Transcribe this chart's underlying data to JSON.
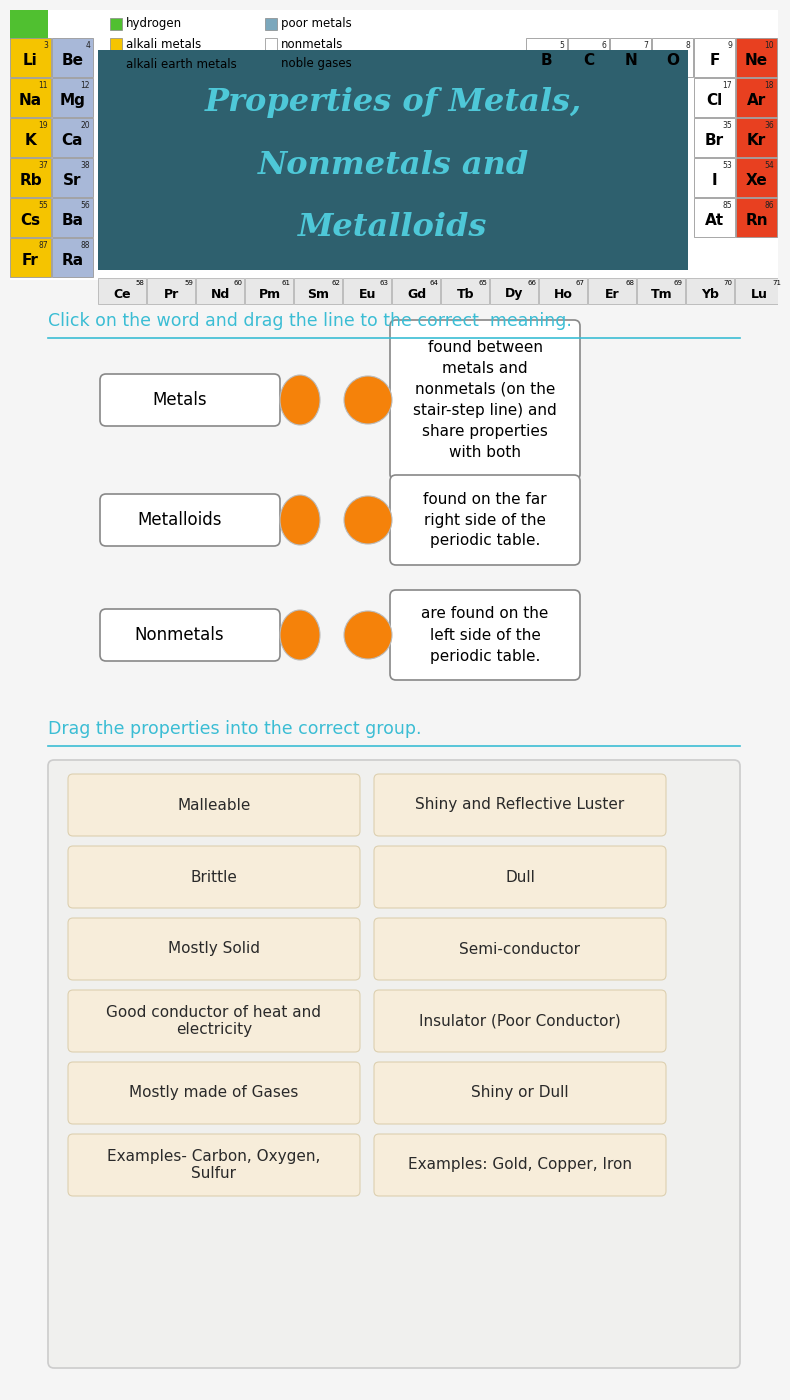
{
  "title_color": "#4ec8d8",
  "title_bg_color": "#2e606e",
  "bg_color": "#f5f5f5",
  "section1_instruction": "Click on the word and drag the line to the correct  meaning.",
  "section2_instruction": "Drag the properties into the correct group.",
  "instruction_color": "#3bbdd4",
  "match_items": [
    {
      "label": "Metals",
      "definition": "found between\nmetals and\nnonmetals (on the\nstair-step line) and\nshare properties\nwith both"
    },
    {
      "label": "Metalloids",
      "definition": "found on the far\nright side of the\nperiodic table."
    },
    {
      "label": "Nonmetals",
      "definition": "are found on the\nleft side of the\nperiodic table."
    }
  ],
  "properties": [
    [
      "Malleable",
      "Shiny and Reflective Luster"
    ],
    [
      "Brittle",
      "Dull"
    ],
    [
      "Mostly Solid",
      "Semi-conductor"
    ],
    [
      "Good conductor of heat and\nelectricity",
      "Insulator (Poor Conductor)"
    ],
    [
      "Mostly made of Gases",
      "Shiny or Dull"
    ],
    [
      "Examples- Carbon, Oxygen,\nSulfur",
      "Examples: Gold, Copper, Iron"
    ]
  ],
  "orange_color": "#f5820a",
  "prop_box_bg": "#f7edda",
  "prop_outer_bg": "#f0f0ee",
  "alkali_color": "#f5c400",
  "alkali_earth_color": "#a8b8d8",
  "noble_gas_color": "#e84020",
  "hydrogen_color": "#50c030",
  "nonmetal_color": "#ffffff",
  "left_elements": [
    {
      "symbol": "Li",
      "number": 3,
      "row": 0,
      "col": 0,
      "color": "#f5c400"
    },
    {
      "symbol": "Be",
      "number": 4,
      "row": 0,
      "col": 1,
      "color": "#a8b8d8"
    },
    {
      "symbol": "Na",
      "number": 11,
      "row": 1,
      "col": 0,
      "color": "#f5c400"
    },
    {
      "symbol": "Mg",
      "number": 12,
      "row": 1,
      "col": 1,
      "color": "#a8b8d8"
    },
    {
      "symbol": "K",
      "number": 19,
      "row": 2,
      "col": 0,
      "color": "#f5c400"
    },
    {
      "symbol": "Ca",
      "number": 20,
      "row": 2,
      "col": 1,
      "color": "#a8b8d8"
    },
    {
      "symbol": "Rb",
      "number": 37,
      "row": 3,
      "col": 0,
      "color": "#f5c400"
    },
    {
      "symbol": "Sr",
      "number": 38,
      "row": 3,
      "col": 1,
      "color": "#a8b8d8"
    },
    {
      "symbol": "Cs",
      "number": 55,
      "row": 4,
      "col": 0,
      "color": "#f5c400"
    },
    {
      "symbol": "Ba",
      "number": 56,
      "row": 4,
      "col": 1,
      "color": "#a8b8d8"
    },
    {
      "symbol": "Fr",
      "number": 87,
      "row": 5,
      "col": 0,
      "color": "#f5c400"
    },
    {
      "symbol": "Ra",
      "number": 88,
      "row": 5,
      "col": 1,
      "color": "#a8b8d8"
    }
  ],
  "right_elements": [
    {
      "symbol": "B",
      "number": 5,
      "row": 0,
      "rcol": 5,
      "color": "#ffffff"
    },
    {
      "symbol": "C",
      "number": 6,
      "row": 0,
      "rcol": 4,
      "color": "#ffffff"
    },
    {
      "symbol": "N",
      "number": 7,
      "row": 0,
      "rcol": 3,
      "color": "#ffffff"
    },
    {
      "symbol": "O",
      "number": 8,
      "row": 0,
      "rcol": 2,
      "color": "#ffffff"
    },
    {
      "symbol": "F",
      "number": 9,
      "row": 0,
      "rcol": 1,
      "color": "#ffffff"
    },
    {
      "symbol": "Ne",
      "number": 10,
      "row": 0,
      "rcol": 0,
      "color": "#e84020"
    },
    {
      "symbol": "Cl",
      "number": 17,
      "row": 1,
      "rcol": 1,
      "color": "#ffffff"
    },
    {
      "symbol": "Ar",
      "number": 18,
      "row": 1,
      "rcol": 0,
      "color": "#e84020"
    },
    {
      "symbol": "Br",
      "number": 35,
      "row": 2,
      "rcol": 1,
      "color": "#ffffff"
    },
    {
      "symbol": "Kr",
      "number": 36,
      "row": 2,
      "rcol": 0,
      "color": "#e84020"
    },
    {
      "symbol": "I",
      "number": 53,
      "row": 3,
      "rcol": 1,
      "color": "#ffffff"
    },
    {
      "symbol": "Xe",
      "number": 54,
      "row": 3,
      "rcol": 0,
      "color": "#e84020"
    },
    {
      "symbol": "At",
      "number": 85,
      "row": 4,
      "rcol": 1,
      "color": "#ffffff"
    },
    {
      "symbol": "Rn",
      "number": 86,
      "row": 4,
      "rcol": 0,
      "color": "#e84020"
    }
  ],
  "lanthanides": [
    {
      "symbol": "Ce",
      "number": 58
    },
    {
      "symbol": "Pr",
      "number": 59
    },
    {
      "symbol": "Nd",
      "number": 60
    },
    {
      "symbol": "Pm",
      "number": 61
    },
    {
      "symbol": "Sm",
      "number": 62
    },
    {
      "symbol": "Eu",
      "number": 63
    },
    {
      "symbol": "Gd",
      "number": 64
    },
    {
      "symbol": "Tb",
      "number": 65
    },
    {
      "symbol": "Dy",
      "number": 66
    },
    {
      "symbol": "Ho",
      "number": 67
    },
    {
      "symbol": "Er",
      "number": 68
    },
    {
      "symbol": "Tm",
      "number": 69
    },
    {
      "symbol": "Yb",
      "number": 70
    },
    {
      "symbol": "Lu",
      "number": 71
    }
  ],
  "legend_col1": [
    {
      "label": "hydrogen",
      "color": "#50c030"
    },
    {
      "label": "alkali metals",
      "color": "#f5c400"
    },
    {
      "label": "alkali earth metals",
      "color": "#a8b8d8"
    }
  ],
  "legend_col2": [
    {
      "label": "poor metals",
      "color": "#7ba7bc"
    },
    {
      "label": "nonmetals",
      "color": "#ffffff"
    },
    {
      "label": "noble gases",
      "color": "#e84020"
    }
  ]
}
